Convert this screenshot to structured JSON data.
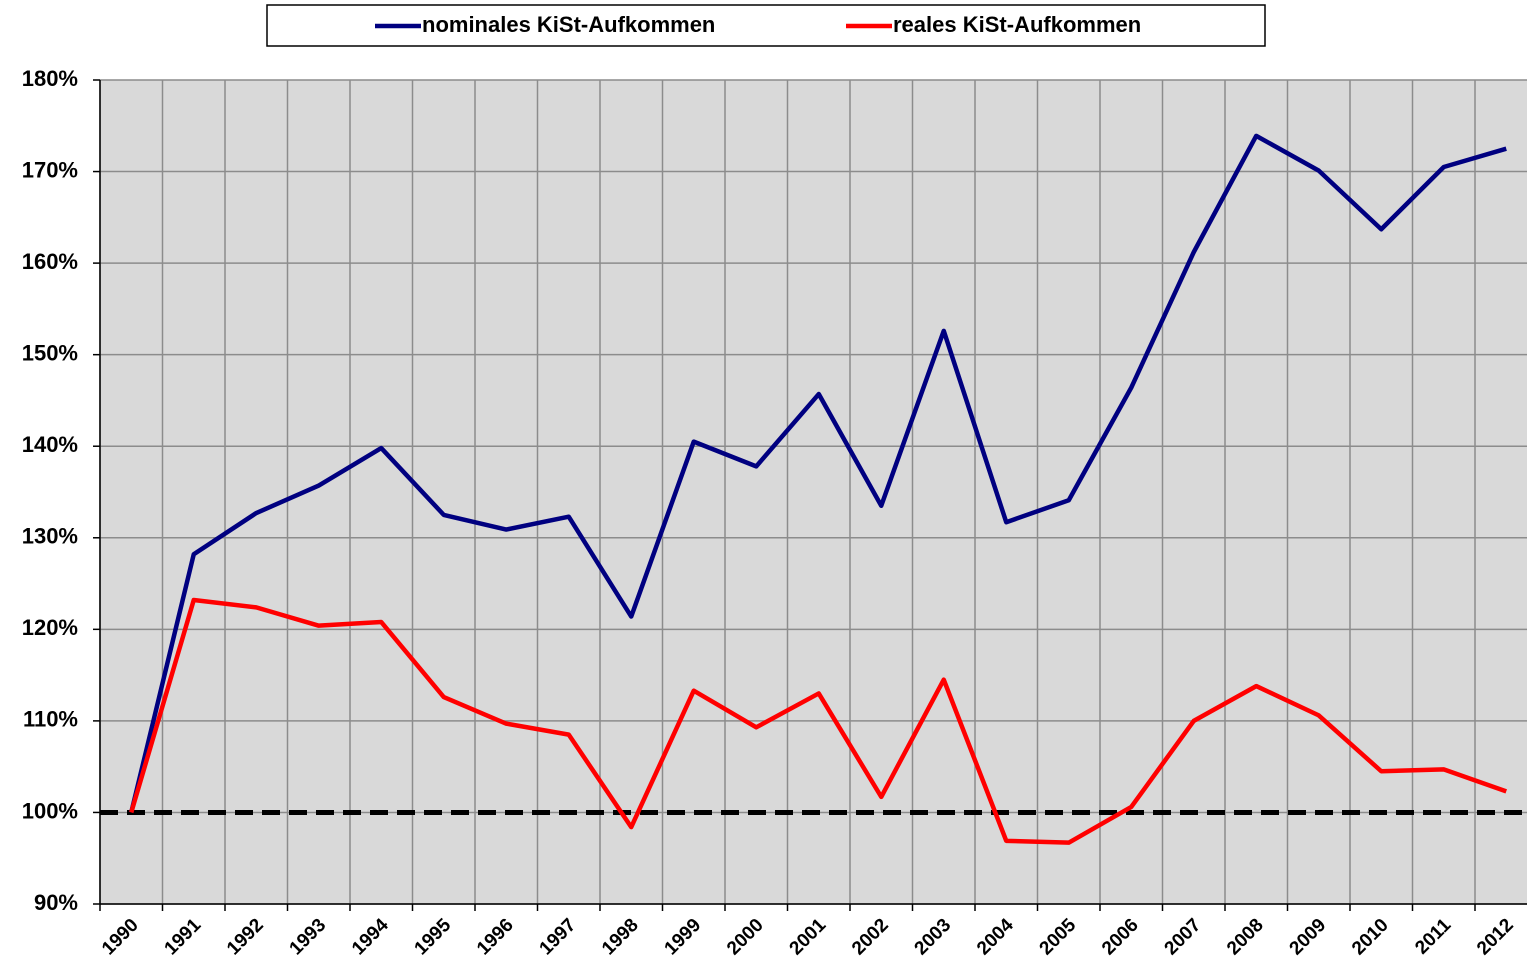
{
  "chart_data": {
    "type": "line",
    "x": [
      "1990",
      "1991",
      "1992",
      "1993",
      "1994",
      "1995",
      "1996",
      "1997",
      "1998",
      "1999",
      "2000",
      "2001",
      "2002",
      "2003",
      "2004",
      "2005",
      "2006",
      "2007",
      "2008",
      "2009",
      "2010",
      "2011",
      "2012"
    ],
    "series": [
      {
        "name": "nominales KiSt-Aufkommen",
        "color": "#000080",
        "values": [
          100,
          128.2,
          132.7,
          135.7,
          139.8,
          132.5,
          130.9,
          132.3,
          121.4,
          140.5,
          137.8,
          145.7,
          133.5,
          152.6,
          131.7,
          134.1,
          146.4,
          161.2,
          173.9,
          170.1,
          163.7,
          170.5,
          172.5
        ]
      },
      {
        "name": "reales KiSt-Aufkommen",
        "color": "#ff0000",
        "values": [
          100,
          123.2,
          122.4,
          120.4,
          120.8,
          112.6,
          109.7,
          108.5,
          98.4,
          113.3,
          109.3,
          113.0,
          101.7,
          114.5,
          96.9,
          96.7,
          100.6,
          110.0,
          113.8,
          110.6,
          104.5,
          104.7,
          102.3
        ]
      }
    ],
    "reference_line": 100,
    "ylim": [
      90,
      180
    ],
    "yticks": [
      {
        "value": 90,
        "label": "90%"
      },
      {
        "value": 100,
        "label": "100%"
      },
      {
        "value": 110,
        "label": "110%"
      },
      {
        "value": 120,
        "label": "120%"
      },
      {
        "value": 130,
        "label": "130%"
      },
      {
        "value": 140,
        "label": "140%"
      },
      {
        "value": 150,
        "label": "150%"
      },
      {
        "value": 160,
        "label": "160%"
      },
      {
        "value": 170,
        "label": "170%"
      },
      {
        "value": 180,
        "label": "180%"
      }
    ],
    "grid": true,
    "legend": "top"
  }
}
